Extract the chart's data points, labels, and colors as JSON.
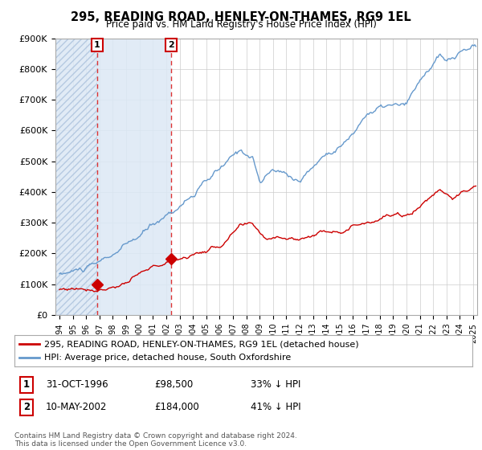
{
  "title": "295, READING ROAD, HENLEY-ON-THAMES, RG9 1EL",
  "subtitle": "Price paid vs. HM Land Registry's House Price Index (HPI)",
  "xlim_start": 1993.7,
  "xlim_end": 2025.3,
  "ylim": [
    0,
    900000
  ],
  "yticks": [
    0,
    100000,
    200000,
    300000,
    400000,
    500000,
    600000,
    700000,
    800000,
    900000
  ],
  "ytick_labels": [
    "£0",
    "£100K",
    "£200K",
    "£300K",
    "£400K",
    "£500K",
    "£600K",
    "£700K",
    "£800K",
    "£900K"
  ],
  "sale1_x": 1996.83,
  "sale1_y": 98500,
  "sale2_x": 2002.36,
  "sale2_y": 184000,
  "legend_line1": "295, READING ROAD, HENLEY-ON-THAMES, RG9 1EL (detached house)",
  "legend_line2": "HPI: Average price, detached house, South Oxfordshire",
  "sale1_date": "31-OCT-1996",
  "sale1_price": "£98,500",
  "sale1_hpi": "33% ↓ HPI",
  "sale2_date": "10-MAY-2002",
  "sale2_price": "£184,000",
  "sale2_hpi": "41% ↓ HPI",
  "footer": "Contains HM Land Registry data © Crown copyright and database right 2024.\nThis data is licensed under the Open Government Licence v3.0.",
  "red_line_color": "#cc0000",
  "blue_line_color": "#6699cc",
  "marker_color": "#cc0000",
  "dashed_vline_color": "#dd3333",
  "bg_color": "#ffffff",
  "grid_color": "#cccccc",
  "hatch_fill_color": "#dce8f5",
  "blue_span_color": "#dce8f5"
}
